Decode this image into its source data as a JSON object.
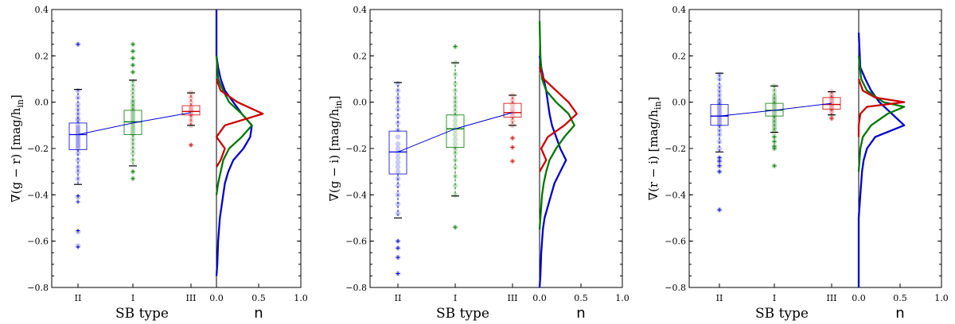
{
  "chart_data": [
    {
      "type": "boxplot+histogram",
      "ylabel_main": "∇(g − r) [mag/h",
      "ylabel_sub": "in",
      "ylabel_end": "]",
      "xlabel": "SB type",
      "hist_xlabel": "n",
      "ylim": [
        -0.8,
        0.4
      ],
      "yticks": [
        "0.4",
        "0.2",
        "0.0",
        "−0.2",
        "−0.4",
        "−0.6",
        "−0.8"
      ],
      "yticks_values": [
        0.4,
        0.2,
        0.0,
        -0.2,
        -0.4,
        -0.6,
        -0.8
      ],
      "categories": [
        "II",
        "I",
        "III"
      ],
      "hist_xticks": [
        "0.0",
        "0.5",
        "1.0"
      ],
      "hist_xticks_values": [
        0.0,
        0.5,
        1.0
      ],
      "boxes": [
        {
          "name": "II",
          "color": "#0000cc",
          "q1": -0.205,
          "median": -0.14,
          "q3": -0.09,
          "wlo": -0.355,
          "whi": 0.055,
          "mean": -0.14,
          "outliers": [
            0.25,
            -0.405,
            -0.43,
            -0.555,
            -0.625
          ],
          "points": [
            0.05,
            0.02,
            -0.01,
            -0.03,
            -0.05,
            -0.07,
            -0.08,
            -0.1,
            -0.11,
            -0.12,
            -0.13,
            -0.14,
            -0.15,
            -0.16,
            -0.17,
            -0.18,
            -0.19,
            -0.2,
            -0.22,
            -0.25,
            -0.28,
            -0.3,
            -0.33,
            0.25,
            -0.41,
            -0.56,
            -0.62
          ]
        },
        {
          "name": "I",
          "color": "#007700",
          "q1": -0.14,
          "median": -0.085,
          "q3": -0.035,
          "wlo": -0.275,
          "whi": 0.095,
          "mean": -0.09,
          "outliers": [
            0.25,
            0.22,
            0.19,
            0.16,
            0.13,
            -0.3,
            -0.33
          ],
          "points": [
            0.25,
            0.22,
            0.19,
            0.16,
            0.13,
            0.09,
            0.07,
            0.05,
            0.03,
            0.01,
            0.0,
            -0.01,
            -0.02,
            -0.03,
            -0.04,
            -0.05,
            -0.06,
            -0.07,
            -0.08,
            -0.09,
            -0.1,
            -0.11,
            -0.12,
            -0.13,
            -0.14,
            -0.16,
            -0.18,
            -0.2,
            -0.22,
            -0.25,
            -0.3,
            -0.33
          ]
        },
        {
          "name": "III",
          "color": "#cc0000",
          "q1": -0.055,
          "median": -0.04,
          "q3": -0.015,
          "wlo": -0.1,
          "whi": 0.04,
          "mean": -0.045,
          "outliers": [
            -0.185
          ],
          "points": [
            0.04,
            0.02,
            0.0,
            -0.02,
            -0.03,
            -0.04,
            -0.05,
            -0.06,
            -0.08,
            -0.1,
            -0.185
          ]
        }
      ],
      "hist": [
        {
          "name": "II",
          "color": "#0000cc",
          "y": [
            0.4,
            0.3,
            0.2,
            0.15,
            0.1,
            0.05,
            0.0,
            -0.05,
            -0.1,
            -0.15,
            -0.2,
            -0.25,
            -0.3,
            -0.35,
            -0.4,
            -0.45,
            -0.5,
            -0.55,
            -0.6,
            -0.65,
            -0.7,
            -0.75
          ],
          "n": [
            0.0,
            0.0,
            0.0,
            0.02,
            0.05,
            0.1,
            0.2,
            0.3,
            0.42,
            0.4,
            0.32,
            0.2,
            0.14,
            0.1,
            0.08,
            0.06,
            0.04,
            0.03,
            0.02,
            0.015,
            0.01,
            0.0
          ]
        },
        {
          "name": "I",
          "color": "#007700",
          "y": [
            0.2,
            0.1,
            0.05,
            0.0,
            -0.05,
            -0.1,
            -0.15,
            -0.2,
            -0.25,
            -0.3,
            -0.35,
            -0.4
          ],
          "n": [
            0.0,
            0.02,
            0.08,
            0.15,
            0.3,
            0.42,
            0.3,
            0.15,
            0.08,
            0.05,
            0.02,
            0.0
          ]
        },
        {
          "name": "III",
          "color": "#cc0000",
          "y": [
            0.1,
            0.05,
            0.0,
            -0.05,
            -0.1,
            -0.15,
            -0.2,
            -0.25,
            -0.28
          ],
          "n": [
            0.0,
            0.05,
            0.25,
            0.55,
            0.1,
            0.0,
            0.1,
            0.05,
            0.0
          ]
        }
      ]
    },
    {
      "type": "boxplot+histogram",
      "ylabel_main": "∇(g − i) [mag/h",
      "ylabel_sub": "in",
      "ylabel_end": "]",
      "xlabel": "SB type",
      "hist_xlabel": "n",
      "ylim": [
        -0.8,
        0.4
      ],
      "yticks": [
        "0.4",
        "0.2",
        "0.0",
        "−0.2",
        "−0.4",
        "−0.6",
        "−0.8"
      ],
      "yticks_values": [
        0.4,
        0.2,
        0.0,
        -0.2,
        -0.4,
        -0.6,
        -0.8
      ],
      "categories": [
        "II",
        "I",
        "III"
      ],
      "hist_xticks": [
        "0.0",
        "0.5",
        "1.0"
      ],
      "hist_xticks_values": [
        0.0,
        0.5,
        1.0
      ],
      "boxes": [
        {
          "name": "II",
          "color": "#0000cc",
          "q1": -0.31,
          "median": -0.215,
          "q3": -0.125,
          "wlo": -0.5,
          "whi": 0.085,
          "mean": -0.215,
          "outliers": [
            -0.6,
            -0.63,
            -0.67,
            -0.74
          ],
          "points": [
            0.08,
            0.05,
            0.02,
            0.0,
            -0.03,
            -0.06,
            -0.09,
            -0.12,
            -0.15,
            -0.18,
            -0.2,
            -0.22,
            -0.24,
            -0.26,
            -0.28,
            -0.3,
            -0.33,
            -0.36,
            -0.4,
            -0.44,
            -0.48,
            -0.6,
            -0.63,
            -0.67,
            -0.74
          ]
        },
        {
          "name": "I",
          "color": "#007700",
          "q1": -0.195,
          "median": -0.115,
          "q3": -0.055,
          "wlo": -0.405,
          "whi": 0.17,
          "mean": -0.115,
          "outliers": [
            0.24,
            -0.54
          ],
          "points": [
            0.24,
            0.17,
            0.12,
            0.08,
            0.05,
            0.02,
            0.0,
            -0.02,
            -0.04,
            -0.06,
            -0.08,
            -0.1,
            -0.12,
            -0.14,
            -0.16,
            -0.18,
            -0.2,
            -0.22,
            -0.25,
            -0.28,
            -0.32,
            -0.36,
            -0.4,
            -0.54
          ]
        },
        {
          "name": "III",
          "color": "#cc0000",
          "q1": -0.065,
          "median": -0.045,
          "q3": -0.005,
          "wlo": -0.1,
          "whi": 0.03,
          "mean": -0.045,
          "outliers": [
            -0.155,
            -0.195,
            -0.255
          ],
          "points": [
            0.03,
            0.01,
            -0.01,
            -0.03,
            -0.045,
            -0.06,
            -0.08,
            -0.1,
            -0.155,
            -0.195,
            -0.255
          ]
        }
      ],
      "hist": [
        {
          "name": "II",
          "color": "#0000cc",
          "y": [
            0.2,
            0.15,
            0.1,
            0.05,
            0.0,
            -0.05,
            -0.1,
            -0.15,
            -0.2,
            -0.25,
            -0.3,
            -0.35,
            -0.4,
            -0.45,
            -0.5,
            -0.55,
            -0.6,
            -0.65,
            -0.7,
            -0.75,
            -0.8
          ],
          "n": [
            0.0,
            0.02,
            0.05,
            0.08,
            0.1,
            0.12,
            0.15,
            0.2,
            0.25,
            0.32,
            0.25,
            0.18,
            0.14,
            0.1,
            0.06,
            0.04,
            0.03,
            0.02,
            0.015,
            0.01,
            0.0
          ]
        },
        {
          "name": "I",
          "color": "#007700",
          "y": [
            0.35,
            0.2,
            0.1,
            0.05,
            0.0,
            -0.05,
            -0.1,
            -0.15,
            -0.2,
            -0.25,
            -0.3,
            -0.35,
            -0.4,
            -0.45,
            -0.5,
            -0.55
          ],
          "n": [
            0.0,
            0.01,
            0.03,
            0.08,
            0.2,
            0.35,
            0.42,
            0.3,
            0.2,
            0.12,
            0.08,
            0.05,
            0.03,
            0.02,
            0.01,
            0.0
          ]
        },
        {
          "name": "III",
          "color": "#cc0000",
          "y": [
            0.15,
            0.1,
            0.05,
            0.0,
            -0.05,
            -0.1,
            -0.15,
            -0.2,
            -0.25,
            -0.3
          ],
          "n": [
            0.0,
            0.05,
            0.2,
            0.35,
            0.45,
            0.3,
            0.1,
            0.02,
            0.08,
            0.0
          ]
        }
      ]
    },
    {
      "type": "boxplot+histogram",
      "ylabel_main": "∇(r − i) [mag/h",
      "ylabel_sub": "in",
      "ylabel_end": "]",
      "xlabel": "SB type",
      "hist_xlabel": "n",
      "ylim": [
        -0.8,
        0.4
      ],
      "yticks": [
        "0.4",
        "0.2",
        "0.0",
        "−0.2",
        "−0.4",
        "−0.6",
        "−0.8"
      ],
      "yticks_values": [
        0.4,
        0.2,
        0.0,
        -0.2,
        -0.4,
        -0.6,
        -0.8
      ],
      "categories": [
        "II",
        "I",
        "III"
      ],
      "hist_xticks": [
        "0.0",
        "0.5",
        "1.0"
      ],
      "hist_xticks_values": [
        0.0,
        0.5,
        1.0
      ],
      "boxes": [
        {
          "name": "II",
          "color": "#0000cc",
          "q1": -0.1,
          "median": -0.06,
          "q3": -0.01,
          "wlo": -0.215,
          "whi": 0.125,
          "mean": -0.06,
          "outliers": [
            -0.24,
            -0.255,
            -0.275,
            -0.3,
            -0.465
          ],
          "points": [
            0.12,
            0.1,
            0.07,
            0.05,
            0.03,
            0.01,
            0.0,
            -0.01,
            -0.02,
            -0.03,
            -0.04,
            -0.05,
            -0.06,
            -0.07,
            -0.08,
            -0.09,
            -0.1,
            -0.12,
            -0.14,
            -0.17,
            -0.2,
            -0.24,
            -0.255,
            -0.275,
            -0.3,
            -0.465
          ]
        },
        {
          "name": "I",
          "color": "#007700",
          "q1": -0.06,
          "median": -0.035,
          "q3": -0.005,
          "wlo": -0.13,
          "whi": 0.07,
          "mean": -0.035,
          "outliers": [
            -0.15,
            -0.17,
            -0.19,
            -0.2,
            -0.275
          ],
          "points": [
            0.07,
            0.05,
            0.03,
            0.02,
            0.01,
            0.0,
            -0.01,
            -0.02,
            -0.03,
            -0.04,
            -0.05,
            -0.06,
            -0.07,
            -0.08,
            -0.09,
            -0.1,
            -0.11,
            -0.12,
            -0.13,
            -0.15,
            -0.17,
            -0.19,
            -0.2,
            -0.275
          ]
        },
        {
          "name": "III",
          "color": "#cc0000",
          "q1": -0.03,
          "median": -0.01,
          "q3": 0.02,
          "wlo": -0.055,
          "whi": 0.045,
          "mean": -0.005,
          "outliers": [
            -0.07
          ],
          "points": [
            0.045,
            0.03,
            0.02,
            0.01,
            0.0,
            -0.01,
            -0.02,
            -0.03,
            -0.04,
            -0.055,
            -0.07
          ]
        }
      ],
      "hist": [
        {
          "name": "II",
          "color": "#0000cc",
          "y": [
            0.3,
            0.15,
            0.1,
            0.05,
            0.0,
            -0.05,
            -0.1,
            -0.15,
            -0.2,
            -0.25,
            -0.3,
            -0.35,
            -0.4,
            -0.45,
            -0.5,
            -0.8
          ],
          "n": [
            0.0,
            0.02,
            0.08,
            0.15,
            0.25,
            0.4,
            0.55,
            0.2,
            0.1,
            0.06,
            0.04,
            0.03,
            0.02,
            0.01,
            0.0,
            0.0
          ]
        },
        {
          "name": "I",
          "color": "#007700",
          "y": [
            0.2,
            0.1,
            0.05,
            0.0,
            -0.02,
            -0.05,
            -0.1,
            -0.15,
            -0.2,
            -0.3
          ],
          "n": [
            0.0,
            0.03,
            0.1,
            0.3,
            0.55,
            0.35,
            0.15,
            0.05,
            0.02,
            0.0
          ]
        },
        {
          "name": "III",
          "color": "#cc0000",
          "y": [
            0.1,
            0.05,
            0.02,
            0.0,
            -0.02,
            -0.05,
            -0.1,
            -0.15
          ],
          "n": [
            0.0,
            0.05,
            0.2,
            0.55,
            0.1,
            0.02,
            0.0,
            0.0
          ]
        }
      ]
    }
  ]
}
